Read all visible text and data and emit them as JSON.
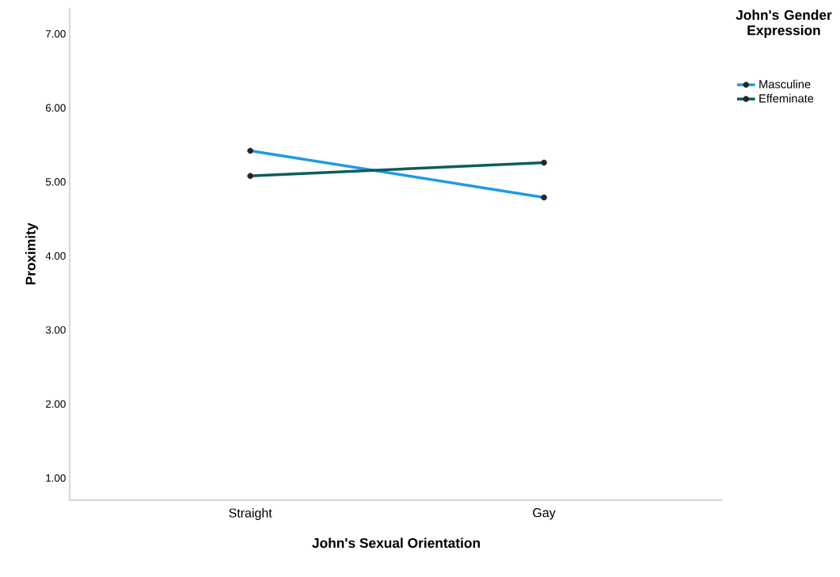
{
  "chart_data": {
    "type": "line",
    "xlabel": "John's Sexual Orientation",
    "ylabel": "Proximity",
    "legend_title": "John's Gender Expression",
    "categories": [
      "Straight",
      "Gay"
    ],
    "series": [
      {
        "name": "Masculine",
        "color": "#1f9ae8",
        "values": [
          5.42,
          4.79
        ]
      },
      {
        "name": "Effeminate",
        "color": "#0b5e5a",
        "values": [
          5.08,
          5.26
        ]
      }
    ],
    "ylim": [
      0.7,
      7.35
    ],
    "yticks": [
      {
        "value": 1,
        "label": "1.00"
      },
      {
        "value": 2,
        "label": "2.00"
      },
      {
        "value": 3,
        "label": "3.00"
      },
      {
        "value": 4,
        "label": "4.00"
      },
      {
        "value": 5,
        "label": "5.00"
      },
      {
        "value": 6,
        "label": "6.00"
      },
      {
        "value": 7,
        "label": "7.00"
      }
    ],
    "legend": "top right",
    "grid": false,
    "marker": "circle",
    "line_style": "solid"
  }
}
